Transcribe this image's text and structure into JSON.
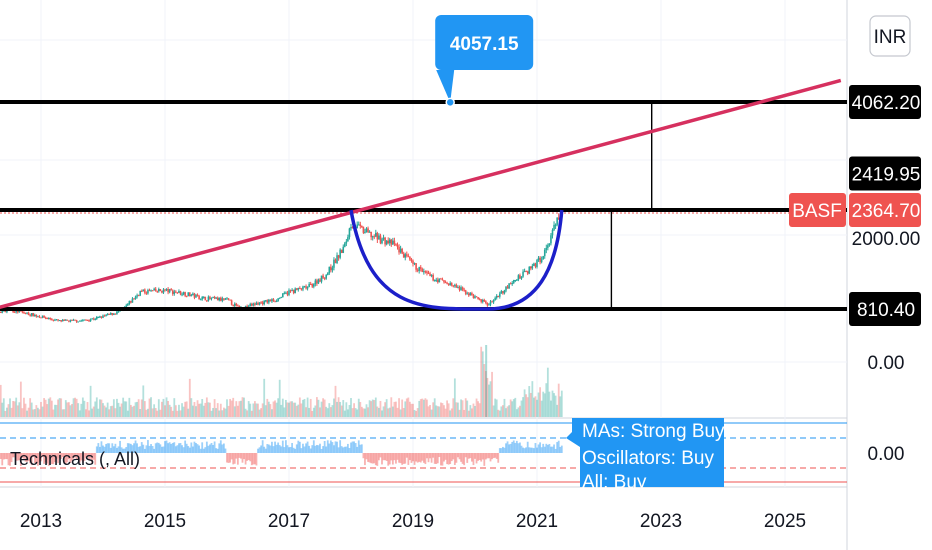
{
  "currency": "INR",
  "callout_label": "4057.15",
  "symbol": "BASF",
  "colors": {
    "candle_up": "#26a69a",
    "candle_down": "#ef5350",
    "trendline": "#d6305f",
    "cup_arc": "#1c1fc9",
    "level_line": "#000000",
    "callout": "#2196f3",
    "price_tag": "#ef5350"
  },
  "indicator_label": "Technicals (, All)",
  "technicals_panel": {
    "line1": "MAs:     Strong Buy",
    "line2": "Oscillators: Buy",
    "line3": "All:  Buy"
  },
  "chart_data": {
    "type": "candlestick",
    "price_scale_labels": [
      "4062.20",
      "2419.95",
      "2364.70",
      "2000.00",
      "810.40",
      "0.00"
    ],
    "indicator_scale_label": "0.00",
    "x_tick_labels": [
      "2013",
      "2015",
      "2017",
      "2019",
      "2021",
      "2023",
      "2025"
    ],
    "horizontal_levels": [
      {
        "price": 4062.2,
        "label": "4062.20"
      },
      {
        "price": 2364.7,
        "label": "2364.70"
      },
      {
        "price": 810.4,
        "label": "810.40"
      }
    ],
    "trendline": {
      "start": [
        2012.0,
        750
      ],
      "end": [
        2025.9,
        4400
      ]
    },
    "target_marker": {
      "date": 2019.6,
      "price": 4057.15
    },
    "cup": {
      "start": [
        2018.0,
        2364.7
      ],
      "bottom": [
        2020.2,
        810.4
      ],
      "end": [
        2021.4,
        2364.7
      ]
    },
    "last_price": 2364.7,
    "price_series": [
      [
        2012.0,
        720
      ],
      [
        2012.5,
        800
      ],
      [
        2013.0,
        690
      ],
      [
        2013.3,
        620
      ],
      [
        2013.7,
        630
      ],
      [
        2014.0,
        690
      ],
      [
        2014.3,
        780
      ],
      [
        2014.6,
        1080
      ],
      [
        2015.0,
        1100
      ],
      [
        2015.3,
        1060
      ],
      [
        2015.6,
        980
      ],
      [
        2016.0,
        950
      ],
      [
        2016.2,
        820
      ],
      [
        2016.5,
        900
      ],
      [
        2016.8,
        960
      ],
      [
        2017.0,
        1080
      ],
      [
        2017.3,
        1150
      ],
      [
        2017.6,
        1350
      ],
      [
        2017.9,
        1800
      ],
      [
        2018.0,
        2150
      ],
      [
        2018.3,
        1980
      ],
      [
        2018.7,
        1820
      ],
      [
        2019.0,
        1500
      ],
      [
        2019.3,
        1300
      ],
      [
        2019.6,
        1200
      ],
      [
        2019.9,
        1050
      ],
      [
        2020.2,
        880
      ],
      [
        2020.4,
        1050
      ],
      [
        2020.7,
        1300
      ],
      [
        2020.9,
        1450
      ],
      [
        2021.1,
        1650
      ],
      [
        2021.3,
        2150
      ],
      [
        2021.42,
        2400
      ]
    ]
  }
}
